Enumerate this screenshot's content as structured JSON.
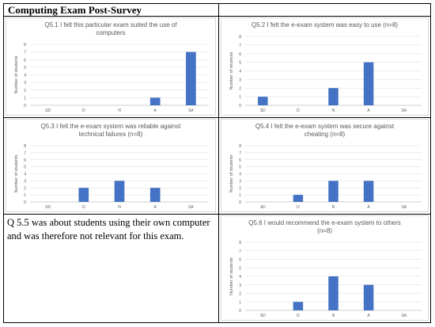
{
  "page_title": "Computing Exam Post-Survey",
  "note": "Q 5.5 was about students using their own computer and was therefore not relevant for this exam.",
  "colors": {
    "bar": "#4472c4",
    "grid": "#d9d9d9",
    "text": "#595959"
  },
  "chart_data": [
    {
      "type": "bar",
      "title_lines": [
        "Q5.1 I felt this particular exam suited the use of",
        "computers"
      ],
      "ylabel": "Number of students",
      "categories": [
        "SD",
        "D",
        "N",
        "A",
        "SA"
      ],
      "values": [
        0,
        0,
        0,
        1,
        7
      ],
      "ylim": [
        0,
        8
      ],
      "yticks": [
        "0",
        "1",
        "2",
        "3",
        "4",
        "5",
        "6",
        "7",
        "8"
      ]
    },
    {
      "type": "bar",
      "title_lines": [
        "Q5.2 I felt the e-exam system was easy to use (n=8)"
      ],
      "ylabel": "Number of students",
      "categories": [
        "SD",
        "D",
        "N",
        "A",
        "SA"
      ],
      "values": [
        1,
        0,
        2,
        5,
        0
      ],
      "ylim": [
        0,
        8
      ],
      "yticks": [
        "0",
        "1",
        "2",
        "3",
        "4",
        "5",
        "6",
        "7",
        "8"
      ]
    },
    {
      "type": "bar",
      "title_lines": [
        "Q5.3 I felt the e-exam system was reliable against",
        "technical failures (n=8)"
      ],
      "ylabel": "Number of students",
      "categories": [
        "SD",
        "D",
        "N",
        "A",
        "SA"
      ],
      "values": [
        0,
        2,
        3,
        2,
        0
      ],
      "ylim": [
        0,
        8
      ],
      "yticks": [
        "0",
        "1",
        "2",
        "3",
        "4",
        "5",
        "6",
        "7",
        "8"
      ]
    },
    {
      "type": "bar",
      "title_lines": [
        "Q5.4 I felt the e-exam system was secure against",
        "cheating (n=8)"
      ],
      "ylabel": "Number of students",
      "categories": [
        "SD",
        "D",
        "N",
        "A",
        "SA"
      ],
      "values": [
        0,
        1,
        3,
        3,
        0
      ],
      "ylim": [
        0,
        8
      ],
      "yticks": [
        "0",
        "1",
        "2",
        "3",
        "4",
        "5",
        "6",
        "7",
        "8"
      ]
    },
    {
      "type": "bar",
      "title_lines": [
        "Q5.6 I would recommend the e-exam system to others",
        "(n=8)"
      ],
      "ylabel": "Number of students",
      "categories": [
        "SD",
        "D",
        "N",
        "A",
        "SA"
      ],
      "values": [
        0,
        1,
        4,
        3,
        0
      ],
      "ylim": [
        0,
        8
      ],
      "yticks": [
        "0",
        "1",
        "2",
        "3",
        "4",
        "5",
        "6",
        "7",
        "8"
      ]
    }
  ]
}
